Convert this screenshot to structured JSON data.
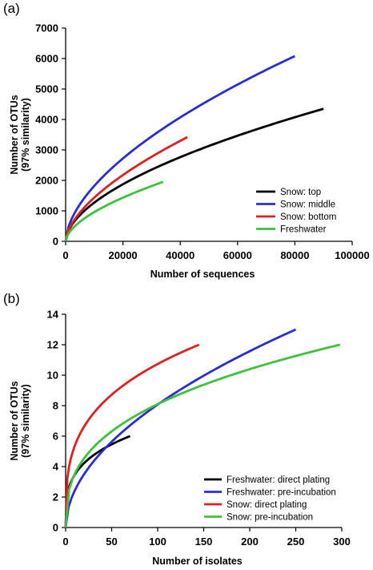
{
  "chart_data": [
    {
      "type": "line",
      "panel_label": "(a)",
      "xlabel": "Number of sequences",
      "ylabel_line1": "Number of OTUs",
      "ylabel_line2": "(97% similarity)",
      "xlim": [
        0,
        100000
      ],
      "ylim": [
        0,
        7000
      ],
      "xticks": [
        0,
        20000,
        40000,
        60000,
        80000,
        100000
      ],
      "yticks": [
        0,
        1000,
        2000,
        3000,
        4000,
        5000,
        6000,
        7000
      ],
      "legend_position": "bottom-right",
      "series": [
        {
          "name": "Snow: top",
          "color": "#000000",
          "x_max": 90000,
          "y_end": 4350,
          "exponent": 0.56
        },
        {
          "name": "Snow: middle",
          "color": "#2b2bd8",
          "x_max": 80000,
          "y_end": 6080,
          "exponent": 0.58
        },
        {
          "name": "Snow: bottom",
          "color": "#e02020",
          "x_max": 42500,
          "y_end": 3420,
          "exponent": 0.6
        },
        {
          "name": "Freshwater",
          "color": "#3cc23c",
          "x_max": 34000,
          "y_end": 1950,
          "exponent": 0.58
        }
      ]
    },
    {
      "type": "line",
      "panel_label": "(b)",
      "xlabel": "Number of isolates",
      "ylabel_line1": "Number of OTUs",
      "ylabel_line2": "(97% similarity)",
      "xlim": [
        0,
        300
      ],
      "ylim": [
        0,
        14
      ],
      "xticks": [
        0,
        50,
        100,
        150,
        200,
        250,
        300
      ],
      "yticks": [
        0,
        2,
        4,
        6,
        8,
        10,
        12,
        14
      ],
      "legend_position": "bottom-right",
      "series": [
        {
          "name": "Freshwater: direct plating",
          "color": "#000000",
          "x_max": 70,
          "y_end": 6,
          "exponent": 0.28
        },
        {
          "name": "Freshwater: pre-incubation",
          "color": "#2b2bd8",
          "x_max": 250,
          "y_end": 13,
          "exponent": 0.52
        },
        {
          "name": "Snow: direct plating",
          "color": "#e02020",
          "x_max": 145,
          "y_end": 12,
          "exponent": 0.3
        },
        {
          "name": "Snow: pre-incubation",
          "color": "#3cc23c",
          "x_max": 298,
          "y_end": 12,
          "exponent": 0.36
        }
      ]
    }
  ]
}
